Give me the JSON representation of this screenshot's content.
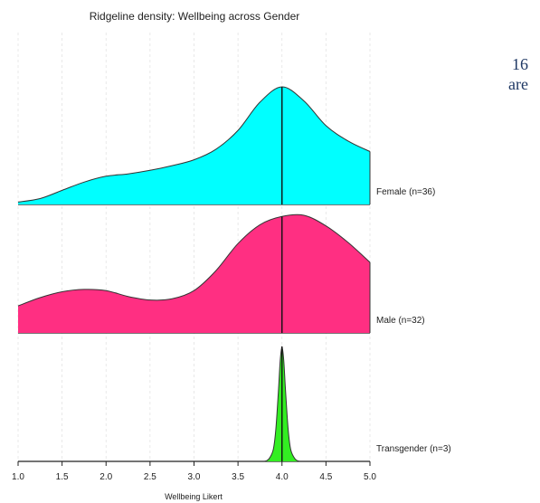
{
  "side_text": [
    "16",
    "are"
  ],
  "chart_data": {
    "type": "ridgeline",
    "title": "Ridgeline density: Wellbeing across Gender",
    "xlabel": "Wellbeing Likert",
    "xlim": [
      1.0,
      5.0
    ],
    "xticks": [
      "1.0",
      "1.5",
      "2.0",
      "2.5",
      "3.0",
      "3.5",
      "4.0",
      "4.5",
      "5.0"
    ],
    "grid": true,
    "series": [
      {
        "name": "Female (n=36)",
        "color": "#00ffff",
        "median": 4.0,
        "x": [
          1.0,
          1.25,
          1.5,
          1.75,
          2.0,
          2.25,
          2.5,
          2.75,
          3.0,
          3.25,
          3.5,
          3.75,
          4.0,
          4.25,
          4.5,
          4.75,
          5.0
        ],
        "density": [
          0.02,
          0.05,
          0.12,
          0.19,
          0.24,
          0.26,
          0.29,
          0.33,
          0.38,
          0.47,
          0.63,
          0.87,
          1.0,
          0.88,
          0.67,
          0.54,
          0.45
        ]
      },
      {
        "name": "Male (n=32)",
        "color": "#ff2f82",
        "median": 4.0,
        "x": [
          1.0,
          1.25,
          1.5,
          1.75,
          2.0,
          2.25,
          2.5,
          2.75,
          3.0,
          3.25,
          3.5,
          3.75,
          4.0,
          4.25,
          4.5,
          4.75,
          5.0
        ],
        "density": [
          0.23,
          0.3,
          0.35,
          0.37,
          0.36,
          0.31,
          0.28,
          0.29,
          0.36,
          0.53,
          0.76,
          0.92,
          0.99,
          1.0,
          0.91,
          0.77,
          0.6
        ]
      },
      {
        "name": "Transgender (n=3)",
        "color": "#33ee22",
        "median": 4.0,
        "x": [
          3.8,
          3.85,
          3.9,
          3.93,
          3.96,
          3.98,
          4.0,
          4.02,
          4.04,
          4.07,
          4.1,
          4.15,
          4.2
        ],
        "density": [
          0.0,
          0.02,
          0.1,
          0.28,
          0.62,
          0.88,
          1.0,
          0.88,
          0.62,
          0.28,
          0.1,
          0.02,
          0.0
        ]
      }
    ]
  }
}
